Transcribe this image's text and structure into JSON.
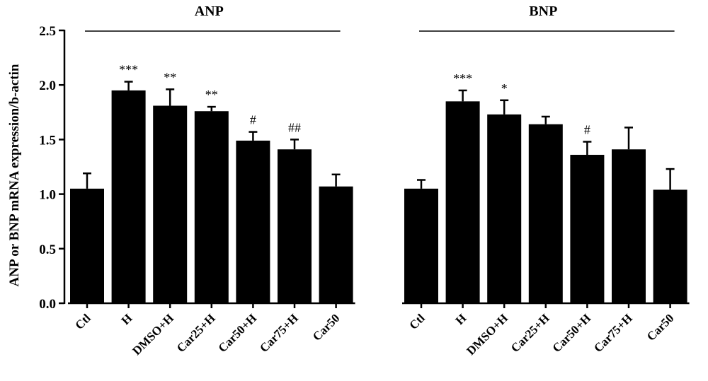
{
  "chart_data": {
    "type": "bar",
    "ylabel": "ANP or BNP mRNA expression/b-actin",
    "ylim": [
      0,
      2.5
    ],
    "yticks": [
      "0.0",
      "0.5",
      "1.0",
      "1.5",
      "2.0",
      "2.5"
    ],
    "categories": [
      "Ctl",
      "H",
      "DMSO+H",
      "Car25+H",
      "Car50+H",
      "Car75+H",
      "Car50"
    ],
    "bar_color": "#000000",
    "groups": [
      {
        "title": "ANP",
        "values": [
          1.05,
          1.95,
          1.81,
          1.76,
          1.49,
          1.41,
          1.07
        ],
        "errors": [
          0.14,
          0.08,
          0.15,
          0.04,
          0.08,
          0.09,
          0.11
        ],
        "annotations": [
          "",
          "***",
          "**",
          "**",
          "#",
          "##",
          ""
        ]
      },
      {
        "title": "BNP",
        "values": [
          1.05,
          1.85,
          1.73,
          1.64,
          1.36,
          1.41,
          1.04
        ],
        "errors": [
          0.08,
          0.1,
          0.13,
          0.07,
          0.12,
          0.2,
          0.19
        ],
        "annotations": [
          "",
          "***",
          "*",
          "",
          "#",
          "",
          ""
        ]
      }
    ]
  }
}
